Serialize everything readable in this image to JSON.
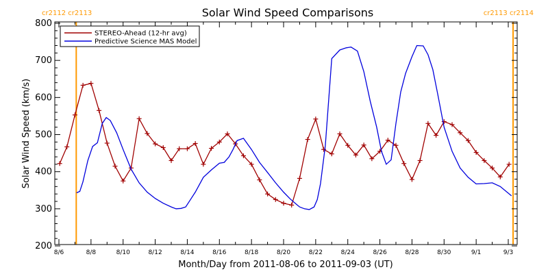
{
  "colors": {
    "stereo": "#a00000",
    "model": "#0000dd",
    "rotation": "#ff9900",
    "axis": "#000000"
  },
  "chart_data": {
    "type": "line",
    "title": "Solar Wind Speed Comparisons",
    "xlabel": "Month/Day from 2011-08-06 to 2011-09-03 (UT)",
    "ylabel": "Solar Wind Speed (km/s)",
    "xlim": [
      0,
      28
    ],
    "ylim": [
      200,
      800
    ],
    "yticks": [
      200,
      300,
      400,
      500,
      600,
      700,
      800
    ],
    "xticks": [
      {
        "x": 0,
        "label": "8/6"
      },
      {
        "x": 2,
        "label": "8/8"
      },
      {
        "x": 4,
        "label": "8/10"
      },
      {
        "x": 6,
        "label": "8/12"
      },
      {
        "x": 8,
        "label": "8/14"
      },
      {
        "x": 10,
        "label": "8/16"
      },
      {
        "x": 12,
        "label": "8/18"
      },
      {
        "x": 14,
        "label": "8/20"
      },
      {
        "x": 16,
        "label": "8/22"
      },
      {
        "x": 18,
        "label": "8/24"
      },
      {
        "x": 20,
        "label": "8/26"
      },
      {
        "x": 22,
        "label": "8/28"
      },
      {
        "x": 24,
        "label": "8/30"
      },
      {
        "x": 26,
        "label": "9/1"
      },
      {
        "x": 28,
        "label": "9/3"
      }
    ],
    "legend": {
      "placement": "top-left"
    },
    "rotation_lines": [
      {
        "x": 1.08,
        "labels": [
          "cr2112",
          "cr2113"
        ],
        "side": "left"
      },
      {
        "x": 28.3,
        "labels": [
          "cr2113",
          "cr2114"
        ],
        "side": "right"
      }
    ],
    "series": [
      {
        "name": "STEREO-Ahead (12-hr avg)",
        "color_key": "stereo",
        "markers": true,
        "x": [
          0.05,
          0.5,
          1.0,
          1.5,
          2.0,
          2.5,
          3.0,
          3.5,
          4.0,
          4.5,
          5.0,
          5.5,
          6.0,
          6.5,
          7.0,
          7.5,
          8.0,
          8.5,
          9.0,
          9.5,
          10.0,
          10.5,
          11.0,
          11.5,
          12.0,
          12.5,
          13.0,
          13.5,
          14.0,
          14.5,
          15.0,
          15.5,
          16.0,
          16.5,
          17.0,
          17.5,
          18.0,
          18.5,
          19.0,
          19.5,
          20.0,
          20.5,
          21.0,
          21.5,
          22.0,
          22.5,
          23.0,
          23.5,
          24.0,
          24.5,
          25.0,
          25.5,
          26.0,
          26.5,
          27.0,
          27.5,
          28.05
        ],
        "y": [
          422,
          467,
          553,
          633,
          638,
          565,
          477,
          415,
          375,
          410,
          543,
          503,
          475,
          465,
          430,
          462,
          462,
          476,
          420,
          463,
          480,
          502,
          475,
          443,
          420,
          378,
          340,
          325,
          315,
          310,
          382,
          487,
          542,
          460,
          448,
          502,
          471,
          445,
          472,
          435,
          455,
          485,
          471,
          422,
          379,
          430,
          530,
          498,
          535,
          527,
          505,
          484,
          452,
          430,
          410,
          386,
          420
        ]
      },
      {
        "name": "Predictive Science MAS Model",
        "color_key": "model",
        "markers": false,
        "x": [
          1.1,
          1.3,
          1.5,
          1.8,
          2.1,
          2.4,
          2.7,
          2.95,
          3.2,
          3.6,
          4.0,
          4.5,
          5.0,
          5.5,
          6.0,
          6.5,
          7.0,
          7.3,
          7.6,
          7.9,
          8.2,
          8.5,
          9.0,
          9.5,
          10.0,
          10.3,
          10.6,
          10.85,
          11.1,
          11.5,
          12.0,
          12.5,
          13.0,
          13.5,
          14.0,
          14.4,
          14.8,
          15.0,
          15.3,
          15.6,
          15.9,
          16.1,
          16.3,
          16.6,
          17.0,
          17.5,
          17.9,
          18.2,
          18.6,
          19.0,
          19.4,
          19.8,
          20.1,
          20.4,
          20.7,
          21.0,
          21.3,
          21.6,
          22.0,
          22.3,
          22.7,
          23.0,
          23.3,
          23.6,
          24.0,
          24.5,
          25.0,
          25.5,
          26.0,
          26.5,
          27.0,
          27.5,
          28.2
        ],
        "y": [
          343,
          347,
          373,
          430,
          468,
          478,
          530,
          546,
          538,
          505,
          460,
          407,
          370,
          345,
          328,
          315,
          305,
          300,
          301,
          305,
          325,
          345,
          385,
          405,
          423,
          425,
          440,
          460,
          484,
          490,
          460,
          425,
          398,
          370,
          345,
          327,
          312,
          305,
          300,
          298,
          305,
          325,
          368,
          470,
          705,
          728,
          734,
          736,
          725,
          670,
          590,
          520,
          455,
          420,
          432,
          530,
          615,
          665,
          710,
          740,
          739,
          715,
          675,
          610,
          520,
          455,
          410,
          385,
          367,
          368,
          370,
          360,
          335
        ]
      }
    ]
  }
}
